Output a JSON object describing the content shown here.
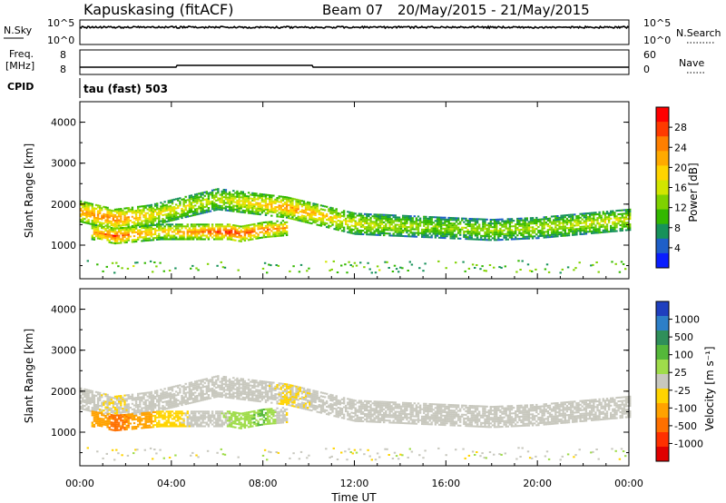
{
  "header": {
    "title": "Kapuskasing (fitACF)",
    "beam": "Beam 07",
    "date_range": "20/May/2015 - 21/May/2015"
  },
  "noise_panel": {
    "left_label": "N.Sky",
    "left_ticks": [
      "10^5",
      "10^0"
    ],
    "right_ticks": [
      "10^5",
      "10^0"
    ],
    "right_label": "N.Search"
  },
  "freq_panel": {
    "left_label_line1": "Freq.",
    "left_label_line2": "[MHz]",
    "left_ticks": [
      "8",
      "8"
    ],
    "right_ticks": [
      "60",
      "0"
    ],
    "right_label": "Nave"
  },
  "cpid": {
    "label": "CPID",
    "value": "tau (fast) 503"
  },
  "x_axis": {
    "ticks": [
      "00:00",
      "04:00",
      "08:00",
      "12:00",
      "16:00",
      "20:00",
      "00:00"
    ],
    "label": "Time UT"
  },
  "power_panel": {
    "ylabel": "Slant Range [km]",
    "yticks": [
      "4000",
      "3000",
      "2000",
      "1000"
    ],
    "colorbar_label": "Power [dB]",
    "colorbar_ticks": [
      "28",
      "24",
      "20",
      "16",
      "12",
      "8",
      "4"
    ],
    "colorbar_colors": [
      "#ff0000",
      "#ff3a00",
      "#ff7f00",
      "#ffaa00",
      "#ffd400",
      "#d2e600",
      "#7fd200",
      "#33b800",
      "#17925a",
      "#1e5fc8",
      "#0a1eff"
    ]
  },
  "velocity_panel": {
    "ylabel": "Slant Range [km]",
    "yticks": [
      "4000",
      "3000",
      "2000",
      "1000"
    ],
    "colorbar_label": "Velocity [m s⁻¹]",
    "colorbar_ticks": [
      "1000",
      "500",
      "100",
      "25",
      "-25",
      "-100",
      "-500",
      "-1000"
    ],
    "colorbar_colors": [
      "#1f3fbf",
      "#2d7fc8",
      "#2f8f5a",
      "#55b83a",
      "#9fdc4a",
      "#c8c8be",
      "#ffd400",
      "#ffa200",
      "#ff7000",
      "#ff3000",
      "#e00000"
    ]
  },
  "chart_data": {
    "type": "heatmap",
    "x_range_hours": [
      0,
      24
    ],
    "y_range_km": [
      180,
      4500
    ],
    "power_db_range": [
      0,
      30
    ],
    "velocity_range": [
      -1000,
      1000
    ],
    "bands": [
      {
        "name": "main_band",
        "x": [
          0,
          1.5,
          3,
          4.5,
          6,
          7.5,
          9,
          10.5,
          12,
          14,
          16,
          18,
          20,
          22,
          24
        ],
        "y_center": [
          1800,
          1600,
          1700,
          1900,
          2100,
          2000,
          1900,
          1700,
          1500,
          1450,
          1400,
          1350,
          1400,
          1500,
          1600
        ],
        "power_db": [
          22,
          24,
          18,
          16,
          14,
          18,
          22,
          20,
          16,
          14,
          13,
          14,
          14,
          15,
          16
        ],
        "velocity": [
          -25,
          -100,
          -25,
          0,
          25,
          -25,
          -100,
          -50,
          0,
          0,
          0,
          0,
          0,
          0,
          0
        ]
      },
      {
        "name": "lower_band",
        "x": [
          0.5,
          1.5,
          2.5,
          3.5,
          6.5,
          7,
          8,
          9
        ],
        "y_center": [
          1300,
          1200,
          1250,
          1300,
          1300,
          1250,
          1350,
          1400
        ],
        "power_db": [
          20,
          26,
          22,
          18,
          28,
          26,
          24,
          20
        ],
        "velocity": [
          -300,
          -500,
          -400,
          -200,
          100,
          200,
          300,
          -100
        ]
      }
    ]
  }
}
